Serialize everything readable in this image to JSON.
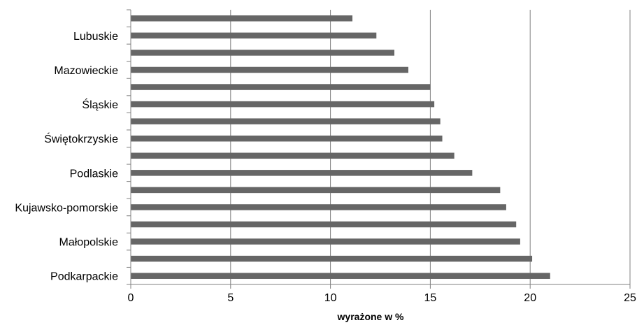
{
  "chart_data": {
    "type": "bar",
    "orientation": "horizontal",
    "xlabel": "wyrażone w %",
    "ylabel": "",
    "xlim": [
      0,
      25
    ],
    "xticks": [
      0,
      5,
      10,
      15,
      20,
      25
    ],
    "grid": "vertical-major",
    "bar_color": "#666666",
    "categories": [
      "",
      "Lubuskie",
      "",
      "Mazowieckie",
      "",
      "Śląskie",
      "",
      "Świętokrzyskie",
      "",
      "Podlaskie",
      "",
      "Kujawsko-pomorskie",
      "",
      "Małopolskie",
      "",
      "Podkarpackie"
    ],
    "values": [
      11.1,
      12.3,
      13.2,
      13.9,
      15.0,
      15.2,
      15.5,
      15.6,
      16.2,
      17.1,
      18.5,
      18.8,
      19.3,
      19.5,
      20.1,
      21.0
    ]
  }
}
